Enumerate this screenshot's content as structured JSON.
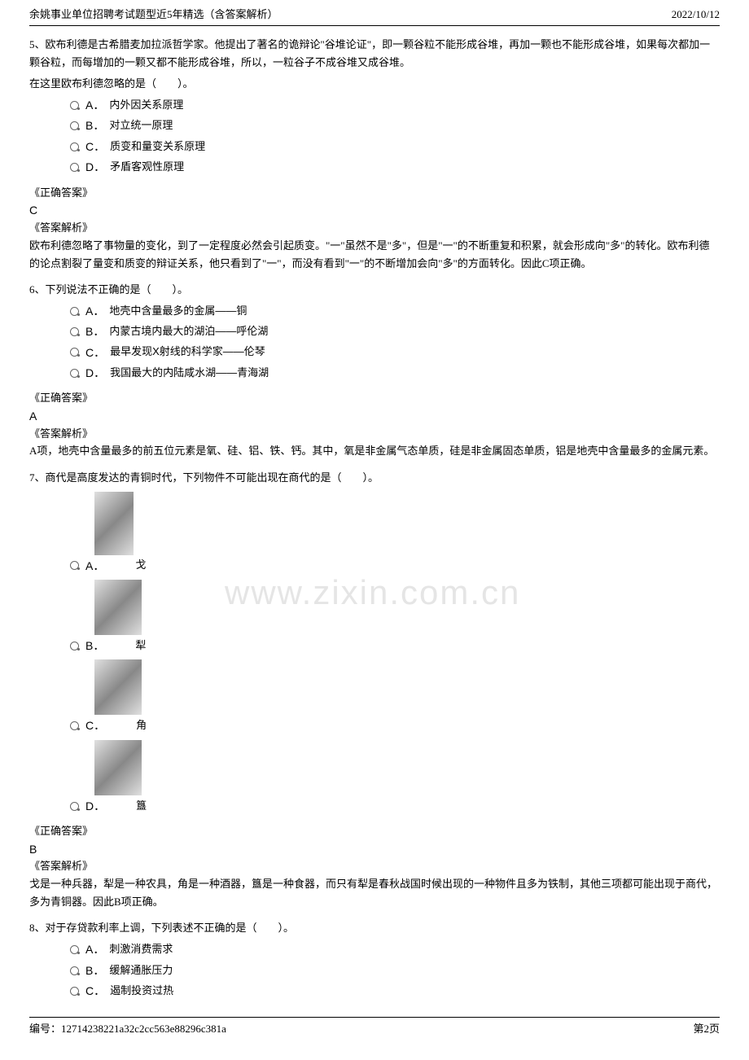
{
  "header": {
    "title": "余姚事业单位招聘考试题型近5年精选（含答案解析）",
    "date": "2022/10/12"
  },
  "questions": [
    {
      "number": "5",
      "stem_lines": [
        "5、欧布利德是古希腊麦加拉派哲学家。他提出了著名的诡辩论\"谷堆论证\"，即一颗谷粒不能形成谷堆，再加一颗也不能形成谷堆，如果每次都加一颗谷粒，而每增加的一颗又都不能形成谷堆，所以，一粒谷子不成谷堆又成谷堆。",
        "在这里欧布利德忽略的是（　　）。"
      ],
      "options": [
        {
          "letter": "A．",
          "text": "内外因关系原理"
        },
        {
          "letter": "B．",
          "text": "对立统一原理"
        },
        {
          "letter": "C．",
          "text": "质变和量变关系原理"
        },
        {
          "letter": "D．",
          "text": "矛盾客观性原理"
        }
      ],
      "answer_label": "《正确答案》",
      "answer": "C",
      "analysis_label": "《答案解析》",
      "analysis": "欧布利德忽略了事物量的变化，到了一定程度必然会引起质变。\"一\"虽然不是\"多\"，但是\"一\"的不断重复和积累，就会形成向\"多\"的转化。欧布利德的论点割裂了量变和质变的辩证关系，他只看到了\"一\"，而没有看到\"一\"的不断增加会向\"多\"的方面转化。因此C项正确。"
    },
    {
      "number": "6",
      "stem_lines": [
        "6、下列说法不正确的是（　　）。"
      ],
      "options": [
        {
          "letter": "A．",
          "text": "地壳中含量最多的金属——铜"
        },
        {
          "letter": "B．",
          "text": "内蒙古境内最大的湖泊——呼伦湖"
        },
        {
          "letter": "C．",
          "text": "最早发现X射线的科学家——伦琴"
        },
        {
          "letter": "D．",
          "text": "我国最大的内陆咸水湖——青海湖"
        }
      ],
      "answer_label": "《正确答案》",
      "answer": "A",
      "analysis_label": "《答案解析》",
      "analysis": "A项，地壳中含量最多的前五位元素是氧、硅、铝、铁、钙。其中，氧是非金属气态单质，硅是非金属固态单质，铝是地壳中含量最多的金属元素。"
    },
    {
      "number": "7",
      "stem_lines": [
        "7、商代是高度发达的青铜时代，下列物件不可能出现在商代的是（　　）。"
      ],
      "image_options": [
        {
          "letter": "A．",
          "caption": "戈"
        },
        {
          "letter": "B．",
          "caption": "犁"
        },
        {
          "letter": "C．",
          "caption": "角"
        },
        {
          "letter": "D．",
          "caption": "簋"
        }
      ],
      "answer_label": "《正确答案》",
      "answer": "B",
      "analysis_label": "《答案解析》",
      "analysis": "戈是一种兵器，犁是一种农具，角是一种酒器，簋是一种食器，而只有犁是春秋战国时候出现的一种物件且多为铁制，其他三项都可能出现于商代，多为青铜器。因此B项正确。"
    },
    {
      "number": "8",
      "stem_lines": [
        "8、对于存贷款利率上调，下列表述不正确的是（　　）。"
      ],
      "options": [
        {
          "letter": "A．",
          "text": "刺激消费需求"
        },
        {
          "letter": "B．",
          "text": "缓解通胀压力"
        },
        {
          "letter": "C．",
          "text": "遏制投资过热"
        }
      ]
    }
  ],
  "watermark": "www.zixin.com.cn",
  "footer": {
    "serial_label": "编号：",
    "serial": "12714238221a32c2cc563e88296c381a",
    "page": "第2页"
  }
}
